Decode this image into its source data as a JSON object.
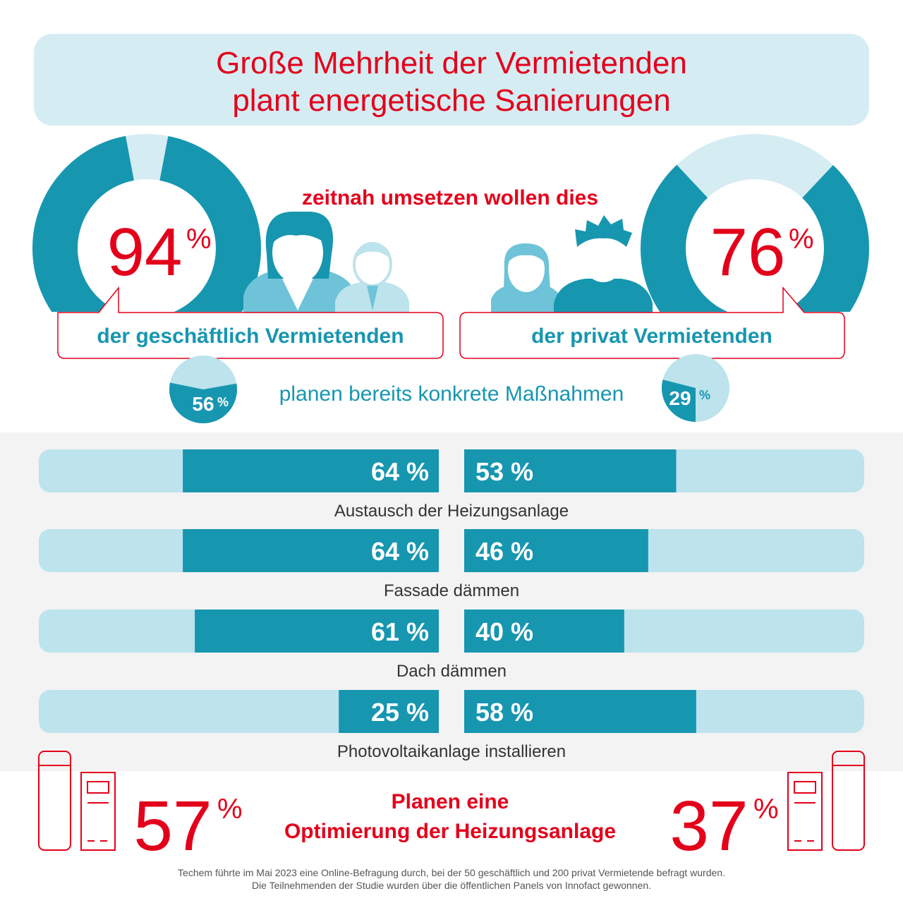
{
  "title": {
    "line1": "Große Mehrheit der Vermietenden",
    "line2": "plant energetische Sanierungen"
  },
  "headline_mid": "zeitnah umsetzen wollen dies",
  "left_group": {
    "percent": "94",
    "percent_sign": "%",
    "label": "der geschäftlich Vermietenden",
    "concrete_value": "56",
    "concrete_sign": "%"
  },
  "right_group": {
    "percent": "76",
    "percent_sign": "%",
    "label": "der privat Vermietenden",
    "concrete_value": "29",
    "concrete_sign": "%"
  },
  "concrete_text": "planen bereits konkrete Maßnahmen",
  "bottom": {
    "left_percent": "57",
    "right_percent": "37",
    "sign": "%",
    "line1": "Planen eine",
    "line2": "Optimierung der Heizungsanlage"
  },
  "footnote": {
    "line1": "Techem führte im Mai 2023 eine Online-Befragung durch, bei der 50 geschäftlich und 200 privat Vermietende befragt wurden.",
    "line2": "Die Teilnehmenden der Studie wurden über die öffentlichen Panels von Innofact gewonnen."
  },
  "colors": {
    "accent_red": "#e3001b",
    "teal": "#1796b0",
    "light_blue": "#bde3ec",
    "title_bg": "#d6ecf3",
    "gray_bg": "#f3f3f3",
    "figure_blue": "#6ec3d8"
  },
  "chart_data": [
    {
      "type": "pie",
      "categories": [
        "zeitnah umsetzen",
        "rest"
      ],
      "values": [
        94,
        6
      ]
    },
    {
      "type": "pie",
      "categories": [
        "zeitnah umsetzen",
        "rest"
      ],
      "values": [
        76,
        24
      ]
    },
    {
      "type": "pie",
      "categories": [
        "konkrete Maßnahmen",
        "rest"
      ],
      "values": [
        56,
        44
      ]
    },
    {
      "type": "pie",
      "categories": [
        "konkrete Maßnahmen",
        "rest"
      ],
      "values": [
        29,
        71
      ]
    },
    {
      "type": "bar",
      "categories": [
        "Austausch der Heizungsanlage",
        "Fassade dämmen",
        "Dach dämmen",
        "Photovoltaikanlage installieren"
      ],
      "series": [
        {
          "values": [
            64,
            64,
            61,
            25
          ]
        },
        {
          "values": [
            53,
            46,
            40,
            58
          ]
        }
      ],
      "value_labels": [
        [
          "64 %",
          "64 %",
          "61 %",
          "25 %"
        ],
        [
          "53 %",
          "46 %",
          "40 %",
          "58 %"
        ]
      ],
      "ylim": [
        0,
        100
      ]
    }
  ]
}
